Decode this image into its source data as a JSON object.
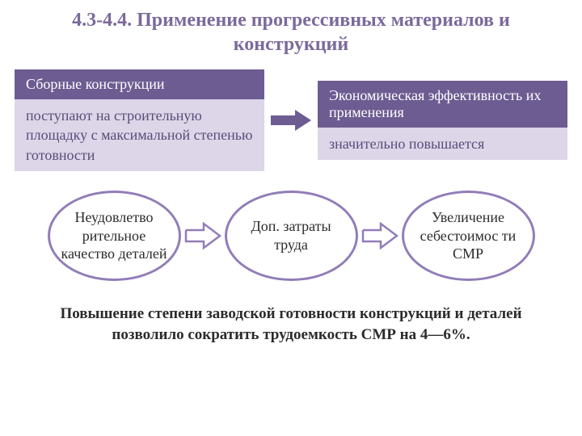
{
  "title": {
    "text": "4.3-4.4. Применение прогрессивных материалов и конструкций",
    "color": "#7b6a9b",
    "fontsize": 24
  },
  "boxes": {
    "left": {
      "header": "Сборные конструкции",
      "body": "поступают на строительную площадку с максимальной степенью готовности"
    },
    "right": {
      "header": "Экономическая эффективность их применения",
      "body": "значительно повышается"
    },
    "header_bg": "#6d5c92",
    "header_fontsize": 18,
    "body_bg": "#dcd6e8",
    "body_color": "#5a4c7a",
    "body_fontsize": 18
  },
  "arrow_solid": {
    "fill": "#6d5c92"
  },
  "ellipses": {
    "items": [
      {
        "label": "Неудовлетво\nрительное качество деталей"
      },
      {
        "label": "Доп. затраты труда"
      },
      {
        "label": "Увеличение себестоимос\nти СМР"
      }
    ],
    "width": 165,
    "height": 112,
    "border_color": "#917db8",
    "border_width": 3,
    "text_color": "#2b2b2b",
    "fontsize": 18
  },
  "arrow_open": {
    "stroke": "#917db8",
    "stroke_width": 2.5
  },
  "footer": {
    "text": "Повышение степени заводской готовности конструкций и деталей позволило сократить трудоемкость СМР на 4—6%.",
    "color": "#2b2b2b",
    "fontsize": 19
  }
}
